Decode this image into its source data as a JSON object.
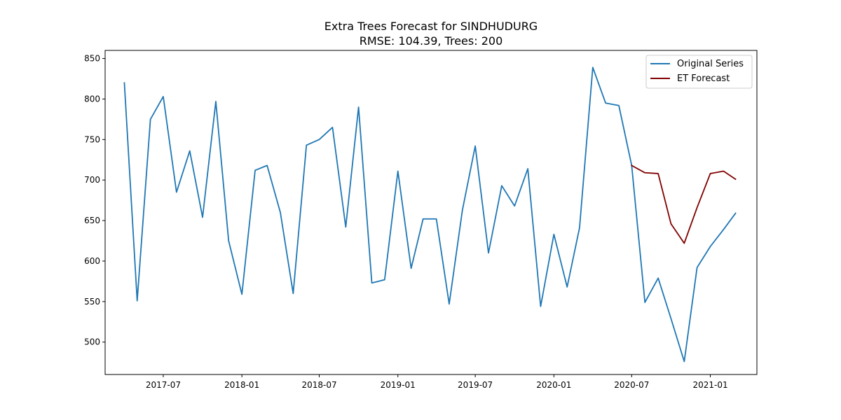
{
  "chart_data": {
    "type": "line",
    "title": "Extra Trees Forecast for SINDHUDURG",
    "subtitle": "RMSE: 104.39, Trees: 200",
    "xlabel": "",
    "ylabel": "",
    "xlim": [
      "2017-02-15",
      "2021-04-20"
    ],
    "ylim": [
      460,
      860
    ],
    "yticks": [
      500,
      550,
      600,
      650,
      700,
      750,
      800,
      850
    ],
    "xticks": [
      {
        "date": "2017-07-01",
        "label": "2017-07"
      },
      {
        "date": "2018-01-01",
        "label": "2018-01"
      },
      {
        "date": "2018-07-01",
        "label": "2018-07"
      },
      {
        "date": "2019-01-01",
        "label": "2019-01"
      },
      {
        "date": "2019-07-01",
        "label": "2019-07"
      },
      {
        "date": "2020-01-01",
        "label": "2020-01"
      },
      {
        "date": "2020-07-01",
        "label": "2020-07"
      },
      {
        "date": "2021-01-01",
        "label": "2021-01"
      }
    ],
    "legend_position": "top-right",
    "grid": false,
    "series": [
      {
        "name": "Original Series",
        "color": "#1f77b4",
        "points": [
          [
            "2017-04-01",
            820
          ],
          [
            "2017-05-01",
            551
          ],
          [
            "2017-06-01",
            775
          ],
          [
            "2017-07-01",
            803
          ],
          [
            "2017-08-01",
            685
          ],
          [
            "2017-09-01",
            736
          ],
          [
            "2017-10-01",
            654
          ],
          [
            "2017-11-01",
            797
          ],
          [
            "2017-12-01",
            625
          ],
          [
            "2018-01-01",
            559
          ],
          [
            "2018-02-01",
            712
          ],
          [
            "2018-03-01",
            718
          ],
          [
            "2018-04-01",
            660
          ],
          [
            "2018-05-01",
            560
          ],
          [
            "2018-06-01",
            743
          ],
          [
            "2018-07-01",
            750
          ],
          [
            "2018-08-01",
            765
          ],
          [
            "2018-09-01",
            642
          ],
          [
            "2018-10-01",
            790
          ],
          [
            "2018-11-01",
            573
          ],
          [
            "2018-12-01",
            577
          ],
          [
            "2019-01-01",
            711
          ],
          [
            "2019-02-01",
            591
          ],
          [
            "2019-03-01",
            652
          ],
          [
            "2019-04-01",
            652
          ],
          [
            "2019-05-01",
            547
          ],
          [
            "2019-06-01",
            663
          ],
          [
            "2019-07-01",
            742
          ],
          [
            "2019-08-01",
            610
          ],
          [
            "2019-09-01",
            693
          ],
          [
            "2019-10-01",
            668
          ],
          [
            "2019-11-01",
            714
          ],
          [
            "2019-12-01",
            544
          ],
          [
            "2020-01-01",
            633
          ],
          [
            "2020-02-01",
            568
          ],
          [
            "2020-03-01",
            641
          ],
          [
            "2020-04-01",
            839
          ],
          [
            "2020-05-01",
            795
          ],
          [
            "2020-06-01",
            792
          ],
          [
            "2020-07-01",
            718
          ],
          [
            "2020-08-01",
            549
          ],
          [
            "2020-09-01",
            579
          ],
          [
            "2020-10-01",
            529
          ],
          [
            "2020-11-01",
            476
          ],
          [
            "2020-12-01",
            592
          ],
          [
            "2021-01-01",
            618
          ],
          [
            "2021-02-01",
            639
          ],
          [
            "2021-03-01",
            659
          ]
        ]
      },
      {
        "name": "ET Forecast",
        "color": "#800000",
        "points": [
          [
            "2020-07-01",
            718
          ],
          [
            "2020-08-01",
            709
          ],
          [
            "2020-09-01",
            708
          ],
          [
            "2020-10-01",
            646
          ],
          [
            "2020-11-01",
            622
          ],
          [
            "2020-12-01",
            666
          ],
          [
            "2021-01-01",
            708
          ],
          [
            "2021-02-01",
            711
          ],
          [
            "2021-03-01",
            701
          ]
        ]
      }
    ]
  }
}
